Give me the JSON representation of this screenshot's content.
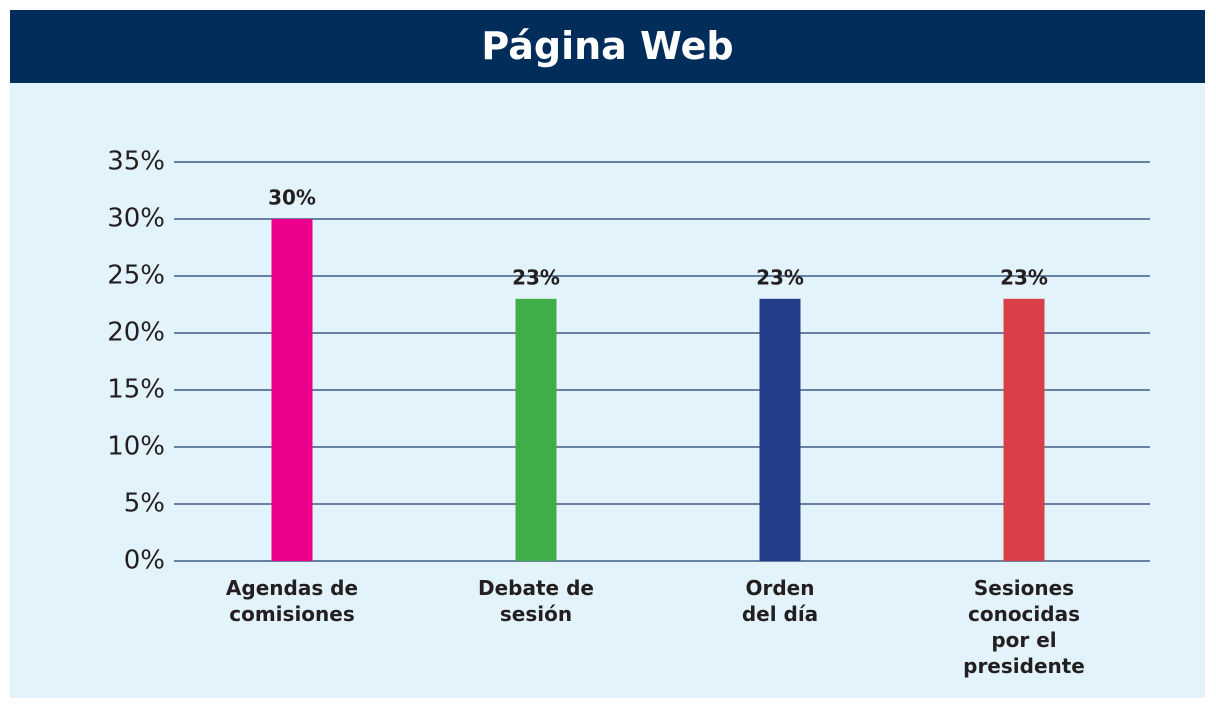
{
  "chart_data": {
    "type": "bar",
    "title": "Página Web",
    "categories": [
      "Agendas de\ncomisiones",
      "Debate de\nsesión",
      "Orden\ndel día",
      "Sesiones\nconocidas\npor el\npresidente"
    ],
    "values": [
      30,
      23,
      23,
      23
    ],
    "value_labels": [
      "30%",
      "23%",
      "23%",
      "23%"
    ],
    "colors": [
      "#ec008c",
      "#3fae49",
      "#233e8b",
      "#da4048"
    ],
    "ylim": [
      0,
      35
    ],
    "yticks": [
      {
        "value": 0,
        "label": "0%"
      },
      {
        "value": 5,
        "label": "5%"
      },
      {
        "value": 10,
        "label": "10%"
      },
      {
        "value": 15,
        "label": "15%"
      },
      {
        "value": 20,
        "label": "20%"
      },
      {
        "value": 25,
        "label": "25%"
      },
      {
        "value": 30,
        "label": "30%"
      },
      {
        "value": 35,
        "label": "35%"
      }
    ],
    "grid": true
  }
}
